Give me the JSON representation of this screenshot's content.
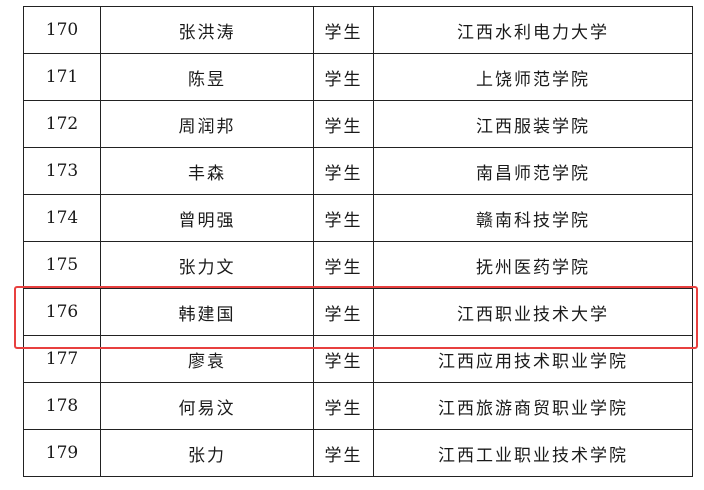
{
  "rows": [
    {
      "no": "170",
      "name": "张洪涛",
      "role": "学生",
      "school": "江西水利电力大学"
    },
    {
      "no": "171",
      "name": "陈昱",
      "role": "学生",
      "school": "上饶师范学院"
    },
    {
      "no": "172",
      "name": "周润邦",
      "role": "学生",
      "school": "江西服装学院"
    },
    {
      "no": "173",
      "name": "丰森",
      "role": "学生",
      "school": "南昌师范学院"
    },
    {
      "no": "174",
      "name": "曾明强",
      "role": "学生",
      "school": "赣南科技学院"
    },
    {
      "no": "175",
      "name": "张力文",
      "role": "学生",
      "school": "抚州医药学院"
    },
    {
      "no": "176",
      "name": "韩建国",
      "role": "学生",
      "school": "江西职业技术大学"
    },
    {
      "no": "177",
      "name": "廖袁",
      "role": "学生",
      "school": "江西应用技术职业学院"
    },
    {
      "no": "178",
      "name": "何易汶",
      "role": "学生",
      "school": "江西旅游商贸职业学院"
    },
    {
      "no": "179",
      "name": "张力",
      "role": "学生",
      "school": "江西工业职业技术学院"
    }
  ],
  "highlighted_row": "176",
  "highlight_color": "#e8403f"
}
